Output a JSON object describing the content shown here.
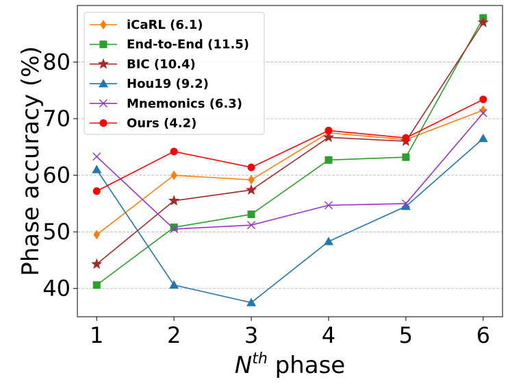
{
  "chart_data": {
    "type": "line",
    "x": [
      1,
      2,
      3,
      4,
      5,
      6
    ],
    "xlim": [
      0.75,
      6.25
    ],
    "ylim": [
      35,
      90
    ],
    "xticks": [
      1,
      2,
      3,
      4,
      5,
      6
    ],
    "yticks": [
      40,
      50,
      60,
      70,
      80
    ],
    "ylabel": "Phase accuracy (%)",
    "xlabel_base": "N",
    "xlabel_sup": "th",
    "xlabel_rest": " phase",
    "grid": "horizontal-dashed",
    "legend_position": "top-left",
    "series": [
      {
        "name": "iCaRL (6.1)",
        "color": "#ff7f0e",
        "marker": "diamond",
        "values": [
          49.5,
          60.0,
          59.2,
          67.5,
          66.3,
          71.5
        ]
      },
      {
        "name": "End-to-End (11.5)",
        "color": "#2ca02c",
        "marker": "square",
        "values": [
          40.6,
          50.8,
          53.1,
          62.7,
          63.2,
          87.8
        ]
      },
      {
        "name": "BIC (10.4)",
        "color": "#a52a2a",
        "marker": "star",
        "values": [
          44.3,
          55.5,
          57.4,
          66.7,
          66.0,
          87.0
        ]
      },
      {
        "name": "Hou19 (9.2)",
        "color": "#1f77b4",
        "marker": "triangle",
        "values": [
          61.0,
          40.6,
          37.5,
          48.3,
          54.5,
          66.5
        ]
      },
      {
        "name": "Mnemonics (6.3)",
        "color": "#9932cc",
        "marker": "x",
        "values": [
          63.3,
          50.5,
          51.2,
          54.7,
          55.0,
          71.0
        ]
      },
      {
        "name": "Ours (4.2)",
        "color": "#ff0000",
        "marker": "circle",
        "values": [
          57.2,
          64.2,
          61.4,
          67.9,
          66.6,
          73.4
        ]
      }
    ]
  }
}
